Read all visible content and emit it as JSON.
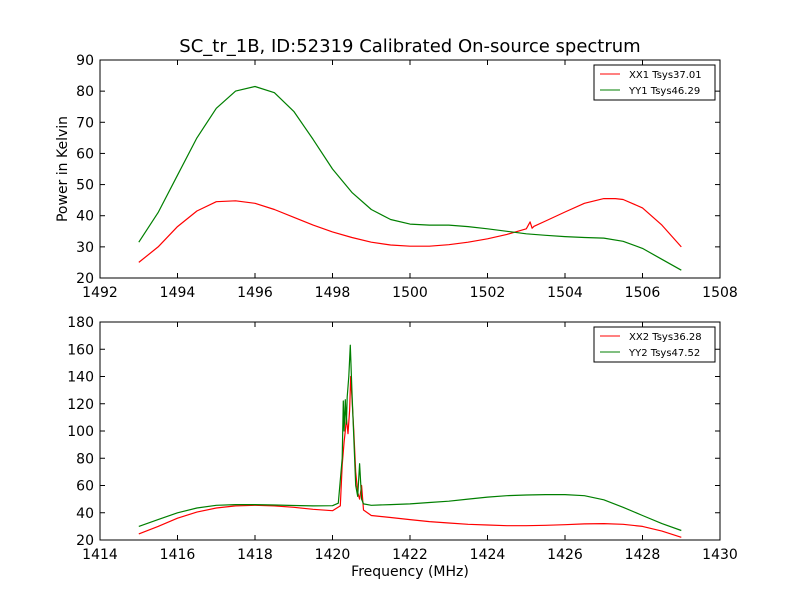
{
  "title": "SC_tr_1B, ID:52319 Calibrated On-source spectrum",
  "colors": {
    "xx": "#ff0000",
    "yy": "#007f00"
  },
  "chart_data": [
    {
      "type": "line",
      "title": "SC_tr_1B, ID:52319 Calibrated On-source spectrum",
      "xlabel": "",
      "ylabel": "Power in Kelvin",
      "xlim": [
        1492,
        1508
      ],
      "ylim": [
        20,
        90
      ],
      "x_ticks": [
        "1492",
        "1494",
        "1496",
        "1498",
        "1500",
        "1502",
        "1504",
        "1506",
        "1508"
      ],
      "y_ticks": [
        "20",
        "30",
        "40",
        "50",
        "60",
        "70",
        "80",
        "90"
      ],
      "grid": false,
      "legend_position": "top-right",
      "series": [
        {
          "name": "XX1 Tsys37.01",
          "color": "#ff0000",
          "x": [
            1493.0,
            1493.5,
            1494.0,
            1494.5,
            1495.0,
            1495.5,
            1496.0,
            1496.5,
            1497.0,
            1497.5,
            1498.0,
            1498.5,
            1499.0,
            1499.5,
            1500.0,
            1500.5,
            1501.0,
            1501.5,
            1502.0,
            1502.5,
            1503.0,
            1503.1,
            1503.15,
            1503.2,
            1503.5,
            1504.0,
            1504.5,
            1505.0,
            1505.3,
            1505.5,
            1506.0,
            1506.5,
            1507.0
          ],
          "y": [
            25.0,
            30.0,
            36.5,
            41.5,
            44.5,
            44.8,
            44.0,
            42.0,
            39.5,
            37.0,
            34.8,
            33.0,
            31.5,
            30.6,
            30.2,
            30.2,
            30.7,
            31.5,
            32.6,
            34.0,
            35.8,
            38.0,
            36.0,
            36.6,
            38.3,
            41.2,
            44.0,
            45.5,
            45.5,
            45.2,
            42.5,
            37.0,
            30.0
          ]
        },
        {
          "name": "YY1 Tsys46.29",
          "color": "#007f00",
          "x": [
            1493.0,
            1493.5,
            1494.0,
            1494.5,
            1495.0,
            1495.5,
            1496.0,
            1496.5,
            1497.0,
            1497.5,
            1498.0,
            1498.5,
            1499.0,
            1499.5,
            1500.0,
            1500.5,
            1501.0,
            1501.5,
            1502.0,
            1502.5,
            1503.0,
            1503.5,
            1504.0,
            1504.5,
            1505.0,
            1505.5,
            1506.0,
            1506.5,
            1507.0
          ],
          "y": [
            31.5,
            41.0,
            53.0,
            65.0,
            74.5,
            80.0,
            81.5,
            79.5,
            73.5,
            64.5,
            55.0,
            47.5,
            42.0,
            38.8,
            37.3,
            37.0,
            37.0,
            36.5,
            35.8,
            35.0,
            34.2,
            33.7,
            33.3,
            33.0,
            32.8,
            31.8,
            29.5,
            26.0,
            22.5
          ]
        }
      ]
    },
    {
      "type": "line",
      "title": "",
      "xlabel": "Frequency (MHz)",
      "ylabel": "",
      "xlim": [
        1414,
        1430
      ],
      "ylim": [
        20,
        180
      ],
      "x_ticks": [
        "1414",
        "1416",
        "1418",
        "1420",
        "1422",
        "1424",
        "1426",
        "1428",
        "1430"
      ],
      "y_ticks": [
        "20",
        "40",
        "60",
        "80",
        "100",
        "120",
        "140",
        "160",
        "180"
      ],
      "grid": false,
      "legend_position": "top-right",
      "series": [
        {
          "name": "XX2 Tsys36.28",
          "color": "#ff0000",
          "x": [
            1415.0,
            1415.5,
            1416.0,
            1416.5,
            1417.0,
            1417.5,
            1418.0,
            1418.5,
            1419.0,
            1419.5,
            1420.0,
            1420.2,
            1420.25,
            1420.3,
            1420.33,
            1420.36,
            1420.4,
            1420.44,
            1420.47,
            1420.5,
            1420.55,
            1420.6,
            1420.65,
            1420.7,
            1420.75,
            1420.8,
            1421.0,
            1421.5,
            1422.0,
            1422.5,
            1423.0,
            1423.5,
            1424.0,
            1424.5,
            1425.0,
            1425.5,
            1426.0,
            1426.5,
            1427.0,
            1427.5,
            1428.0,
            1428.5,
            1429.0
          ],
          "y": [
            24.5,
            30.0,
            36.0,
            40.5,
            43.5,
            45.0,
            45.5,
            45.0,
            44.0,
            42.5,
            41.5,
            45.0,
            75.0,
            92.0,
            100.0,
            110.0,
            98.0,
            115.0,
            140.0,
            125.0,
            100.0,
            70.0,
            55.0,
            50.0,
            60.0,
            42.0,
            38.0,
            36.5,
            35.0,
            33.5,
            32.5,
            31.5,
            31.0,
            30.5,
            30.5,
            30.8,
            31.2,
            31.8,
            32.0,
            31.5,
            30.0,
            26.5,
            22.0
          ]
        },
        {
          "name": "YY2 Tsys47.52",
          "color": "#007f00",
          "x": [
            1415.0,
            1415.5,
            1416.0,
            1416.5,
            1417.0,
            1417.5,
            1418.0,
            1418.5,
            1419.0,
            1419.5,
            1420.0,
            1420.15,
            1420.25,
            1420.28,
            1420.3,
            1420.33,
            1420.36,
            1420.38,
            1420.42,
            1420.46,
            1420.5,
            1420.55,
            1420.6,
            1420.65,
            1420.7,
            1420.75,
            1420.8,
            1421.0,
            1421.5,
            1422.0,
            1422.5,
            1423.0,
            1423.5,
            1424.0,
            1424.5,
            1425.0,
            1425.5,
            1426.0,
            1426.5,
            1427.0,
            1427.5,
            1428.0,
            1428.5,
            1429.0
          ],
          "y": [
            30.0,
            35.0,
            40.0,
            43.5,
            45.5,
            46.0,
            46.0,
            45.7,
            45.3,
            45.0,
            45.2,
            47.0,
            80.0,
            122.0,
            100.0,
            123.0,
            105.0,
            125.0,
            140.0,
            163.0,
            130.0,
            95.0,
            60.0,
            52.0,
            76.0,
            50.0,
            46.5,
            45.5,
            46.0,
            46.5,
            47.5,
            48.5,
            50.0,
            51.5,
            52.5,
            53.0,
            53.3,
            53.3,
            52.5,
            49.5,
            44.0,
            38.0,
            32.0,
            27.0
          ]
        }
      ]
    }
  ]
}
